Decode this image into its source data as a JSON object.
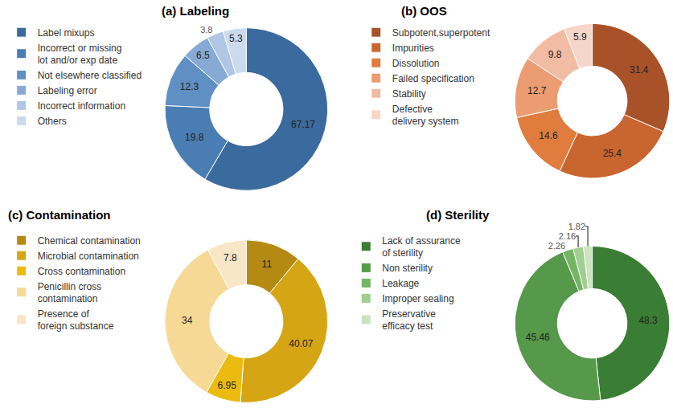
{
  "chart_data": [
    {
      "type": "pie",
      "title": "(a) Labeling",
      "categories": [
        "Label mixups",
        "Incorrect or missing lot and/or exp date",
        "Not elsewhere classified",
        "Labeling error",
        "Incorrect information",
        "Others"
      ],
      "values": [
        67.17,
        19.8,
        12.3,
        6.5,
        3.8,
        5.3
      ],
      "colors": [
        "#3A6A9E",
        "#4A7DB3",
        "#5F8FC3",
        "#86AAD4",
        "#AFC7E4",
        "#CCDAEE"
      ],
      "data_labels": true
    },
    {
      "type": "pie",
      "title": "(b) OOS",
      "categories": [
        "Subpotent,superpotent",
        "Impurities",
        "Dissolution",
        "Failed specification",
        "Stability",
        "Defective delivery system"
      ],
      "values": [
        31.4,
        25.4,
        14.6,
        12.7,
        9.8,
        5.9
      ],
      "colors": [
        "#A9522A",
        "#C9652E",
        "#E07D3E",
        "#EC9C72",
        "#F2BBA3",
        "#F7D6CA"
      ],
      "data_labels": true
    },
    {
      "type": "pie",
      "title": "(c) Contamination",
      "categories": [
        "Chemical contamination",
        "Microbial contamination",
        "Cross contamination",
        "Penicillin cross contamination",
        "Presence of foreign substance"
      ],
      "values": [
        11,
        40.07,
        6.95,
        34,
        7.8
      ],
      "colors": [
        "#B58A14",
        "#D6A514",
        "#EBBB10",
        "#F6D994",
        "#F9E6C6"
      ],
      "data_labels": true
    },
    {
      "type": "pie",
      "title": "(d) Sterility",
      "categories": [
        "Lack of assurance of sterility",
        "Non sterility",
        "Leakage",
        "Improper sealing",
        "Preservative efficacy test"
      ],
      "values": [
        48.3,
        45.46,
        2.26,
        2.16,
        1.82
      ],
      "colors": [
        "#3A7D34",
        "#56994A",
        "#74B564",
        "#A0CE90",
        "#C9E4BE"
      ],
      "data_labels": true
    }
  ]
}
